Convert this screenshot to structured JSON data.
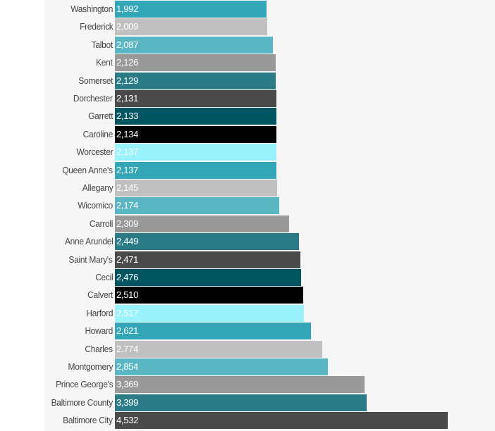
{
  "chart_data": {
    "type": "bar",
    "orientation": "horizontal",
    "title": "",
    "xlabel": "",
    "ylabel": "",
    "categories": [
      "Washington",
      "Frederick",
      "Talbot",
      "Kent",
      "Somerset",
      "Dorchester",
      "Garrett",
      "Caroline",
      "Worcester",
      "Queen Anne's",
      "Allegany",
      "Wicomico",
      "Carroll",
      "Anne Arundel",
      "Saint Mary's",
      "Cecil",
      "Calvert",
      "Harford",
      "Howard",
      "Charles",
      "Montgomery",
      "Prince George's",
      "Baltimore County",
      "Baltimore City"
    ],
    "values": [
      1992,
      2009,
      2087,
      2126,
      2129,
      2131,
      2133,
      2134,
      2137,
      2137,
      2145,
      2174,
      2309,
      2449,
      2471,
      2476,
      2510,
      2517,
      2621,
      2774,
      2854,
      3369,
      3399,
      4532
    ],
    "value_labels": [
      "1,992",
      "2,009",
      "2,087",
      "2,126",
      "2,129",
      "2,131",
      "2,133",
      "2,134",
      "2,137",
      "2,137",
      "2,145",
      "2,174",
      "2,309",
      "2,449",
      "2,471",
      "2,476",
      "2,510",
      "2,517",
      "2,621",
      "2,774",
      "2,854",
      "3,369",
      "3,399",
      "4,532"
    ],
    "palette": [
      "#33a6b8",
      "#c0c0c0",
      "#5bb6c4",
      "#999999",
      "#2a7b85",
      "#4a4a4a",
      "#005560",
      "#000000",
      "#99f2fc"
    ],
    "grid": false,
    "legend": "none"
  }
}
